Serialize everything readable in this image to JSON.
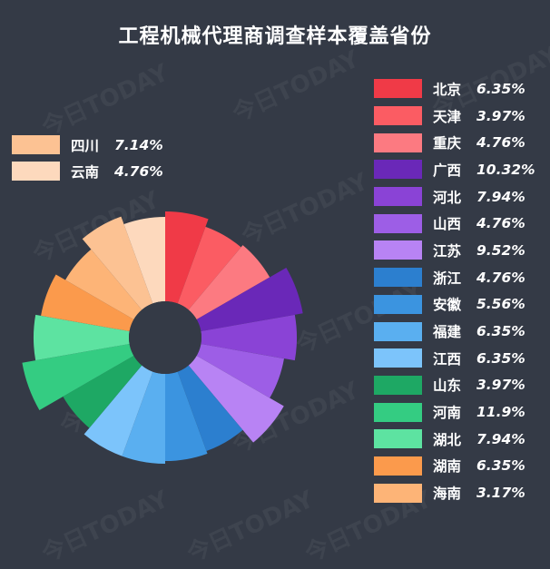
{
  "title": "工程机械代理商调查样本覆盖省份",
  "watermark_text": "今日TODAY",
  "chart_data": {
    "type": "pie",
    "subtype": "rose-donut",
    "title": "工程机械代理商调查样本覆盖省份",
    "categories": [
      "北京",
      "天津",
      "重庆",
      "广西",
      "河北",
      "山西",
      "江苏",
      "浙江",
      "安徽",
      "福建",
      "江西",
      "山东",
      "河南",
      "湖北",
      "湖南",
      "海南",
      "四川",
      "云南"
    ],
    "values": [
      6.35,
      3.97,
      4.76,
      10.32,
      7.94,
      4.76,
      9.52,
      4.76,
      5.56,
      6.35,
      6.35,
      3.97,
      11.9,
      7.94,
      6.35,
      3.17,
      7.14,
      4.76
    ],
    "labels": [
      "6.35%",
      "3.97%",
      "4.76%",
      "10.32%",
      "7.94%",
      "4.76%",
      "9.52%",
      "4.76%",
      "5.56%",
      "6.35%",
      "6.35%",
      "3.97%",
      "11.9%",
      "7.94%",
      "6.35%",
      "3.17%",
      "7.14%",
      "4.76%"
    ],
    "colors": [
      "#f03a47",
      "#fb5c63",
      "#fc7a81",
      "#6a28b8",
      "#8a43d6",
      "#9d5ee6",
      "#b883f4",
      "#2c7fcf",
      "#3b94e0",
      "#5aaff0",
      "#7cc4fb",
      "#1ea864",
      "#34cc82",
      "#5de3a1",
      "#fb9a4c",
      "#fdb477",
      "#fcc293",
      "#fdd9bd"
    ],
    "legend_right_count": 16
  }
}
